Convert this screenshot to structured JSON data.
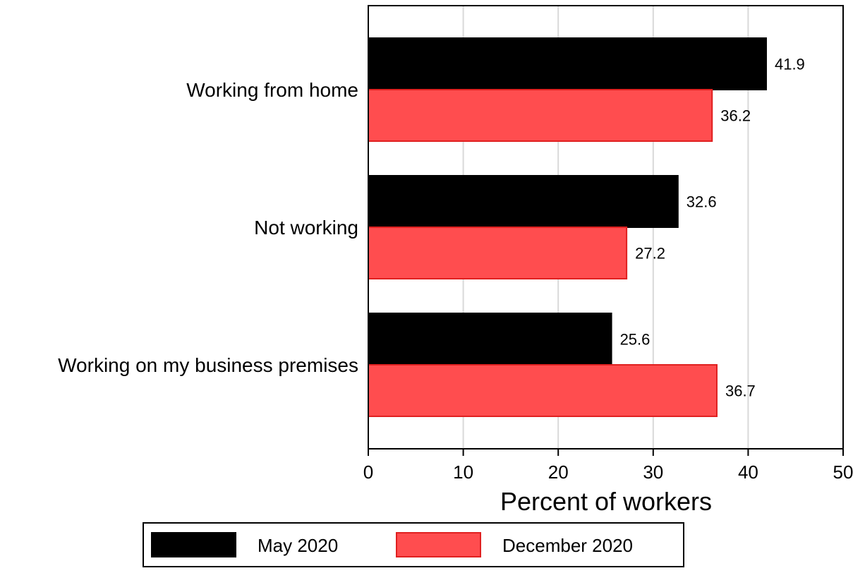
{
  "chart_data": {
    "type": "bar",
    "orientation": "horizontal",
    "categories": [
      "Working from home",
      "Not working",
      "Working on my business premises"
    ],
    "series": [
      {
        "name": "May 2020",
        "values": [
          41.9,
          32.6,
          25.6
        ],
        "color": "#000000"
      },
      {
        "name": "December 2020",
        "values": [
          36.2,
          27.2,
          36.7
        ],
        "color": "#ff4d4f"
      }
    ],
    "data_labels": [
      [
        "41.9",
        "32.6",
        "25.6"
      ],
      [
        "36.2",
        "27.2",
        "36.7"
      ]
    ],
    "xlabel": "Percent of workers",
    "xlim": [
      0,
      50
    ],
    "xticks": [
      0,
      10,
      20,
      30,
      40,
      50
    ],
    "xtick_labels": [
      "0",
      "10",
      "20",
      "30",
      "40",
      "50"
    ],
    "grid": true,
    "legend_position": "bottom"
  }
}
